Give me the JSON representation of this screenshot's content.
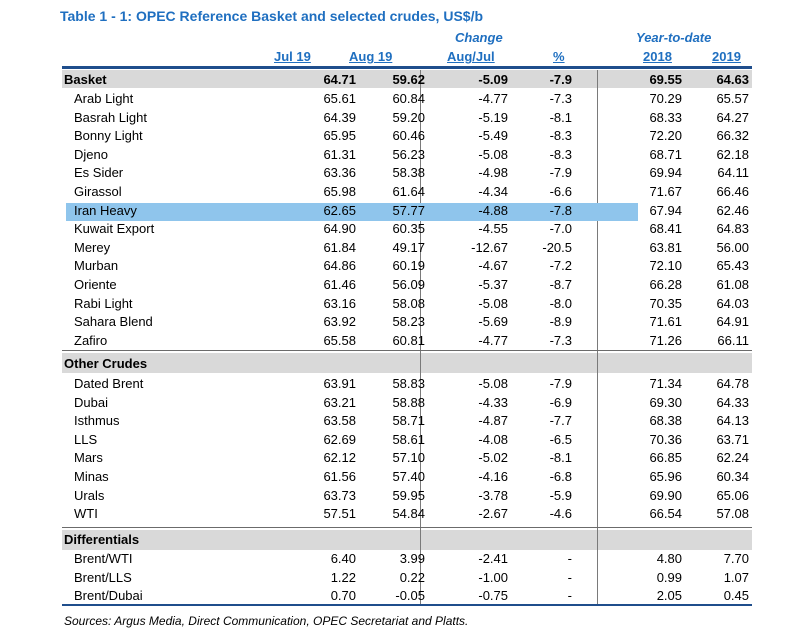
{
  "title": "Table 1 - 1: OPEC Reference Basket and selected crudes, US$/b",
  "headers": {
    "change": "Change",
    "ytd": "Year-to-date",
    "jul": "Jul 19",
    "aug": "Aug 19",
    "augjul": "Aug/Jul",
    "pct": "%",
    "y2018": "2018",
    "y2019": "2019"
  },
  "basket": {
    "name": "Basket",
    "v": [
      "64.71",
      "59.62",
      "-5.09",
      "-7.9",
      "69.55",
      "64.63"
    ]
  },
  "basket_rows": [
    {
      "name": "Arab Light",
      "v": [
        "65.61",
        "60.84",
        "-4.77",
        "-7.3",
        "70.29",
        "65.57"
      ]
    },
    {
      "name": "Basrah Light",
      "v": [
        "64.39",
        "59.20",
        "-5.19",
        "-8.1",
        "68.33",
        "64.27"
      ]
    },
    {
      "name": "Bonny Light",
      "v": [
        "65.95",
        "60.46",
        "-5.49",
        "-8.3",
        "72.20",
        "66.32"
      ]
    },
    {
      "name": "Djeno",
      "v": [
        "61.31",
        "56.23",
        "-5.08",
        "-8.3",
        "68.71",
        "62.18"
      ]
    },
    {
      "name": "Es Sider",
      "v": [
        "63.36",
        "58.38",
        "-4.98",
        "-7.9",
        "69.94",
        "64.11"
      ]
    },
    {
      "name": "Girassol",
      "v": [
        "65.98",
        "61.64",
        "-4.34",
        "-6.6",
        "71.67",
        "66.46"
      ]
    },
    {
      "name": "Iran Heavy",
      "v": [
        "62.65",
        "57.77",
        "-4.88",
        "-7.8",
        "67.94",
        "62.46"
      ]
    },
    {
      "name": "Kuwait Export",
      "v": [
        "64.90",
        "60.35",
        "-4.55",
        "-7.0",
        "68.41",
        "64.83"
      ]
    },
    {
      "name": "Merey",
      "v": [
        "61.84",
        "49.17",
        "-12.67",
        "-20.5",
        "63.81",
        "56.00"
      ]
    },
    {
      "name": "Murban",
      "v": [
        "64.86",
        "60.19",
        "-4.67",
        "-7.2",
        "72.10",
        "65.43"
      ]
    },
    {
      "name": "Oriente",
      "v": [
        "61.46",
        "56.09",
        "-5.37",
        "-8.7",
        "66.28",
        "61.08"
      ]
    },
    {
      "name": "Rabi Light",
      "v": [
        "63.16",
        "58.08",
        "-5.08",
        "-8.0",
        "70.35",
        "64.03"
      ]
    },
    {
      "name": "Sahara Blend",
      "v": [
        "63.92",
        "58.23",
        "-5.69",
        "-8.9",
        "71.61",
        "64.91"
      ]
    },
    {
      "name": "Zafiro",
      "v": [
        "65.58",
        "60.81",
        "-4.77",
        "-7.3",
        "71.26",
        "66.11"
      ]
    }
  ],
  "other_title": "Other Crudes",
  "other_rows": [
    {
      "name": "Dated Brent",
      "v": [
        "63.91",
        "58.83",
        "-5.08",
        "-7.9",
        "71.34",
        "64.78"
      ]
    },
    {
      "name": "Dubai",
      "v": [
        "63.21",
        "58.88",
        "-4.33",
        "-6.9",
        "69.30",
        "64.33"
      ]
    },
    {
      "name": "Isthmus",
      "v": [
        "63.58",
        "58.71",
        "-4.87",
        "-7.7",
        "68.38",
        "64.13"
      ]
    },
    {
      "name": "LLS",
      "v": [
        "62.69",
        "58.61",
        "-4.08",
        "-6.5",
        "70.36",
        "63.71"
      ]
    },
    {
      "name": "Mars",
      "v": [
        "62.12",
        "57.10",
        "-5.02",
        "-8.1",
        "66.85",
        "62.24"
      ]
    },
    {
      "name": "Minas",
      "v": [
        "61.56",
        "57.40",
        "-4.16",
        "-6.8",
        "65.96",
        "60.34"
      ]
    },
    {
      "name": "Urals",
      "v": [
        "63.73",
        "59.95",
        "-3.78",
        "-5.9",
        "69.90",
        "65.06"
      ]
    },
    {
      "name": "WTI",
      "v": [
        "57.51",
        "54.84",
        "-2.67",
        "-4.6",
        "66.54",
        "57.08"
      ]
    }
  ],
  "diff_title": "Differentials",
  "diff_rows": [
    {
      "name": "Brent/WTI",
      "v": [
        "6.40",
        "3.99",
        "-2.41",
        "-",
        "4.80",
        "7.70"
      ]
    },
    {
      "name": "Brent/LLS",
      "v": [
        "1.22",
        "0.22",
        "-1.00",
        "-",
        "0.99",
        "1.07"
      ]
    },
    {
      "name": "Brent/Dubai",
      "v": [
        "0.70",
        "-0.05",
        "-0.75",
        "-",
        "2.05",
        "0.45"
      ]
    }
  ],
  "source": "Sources:  Argus Media, Direct Communication, OPEC Secretariat and Platts.",
  "highlight_row": "Iran Heavy"
}
